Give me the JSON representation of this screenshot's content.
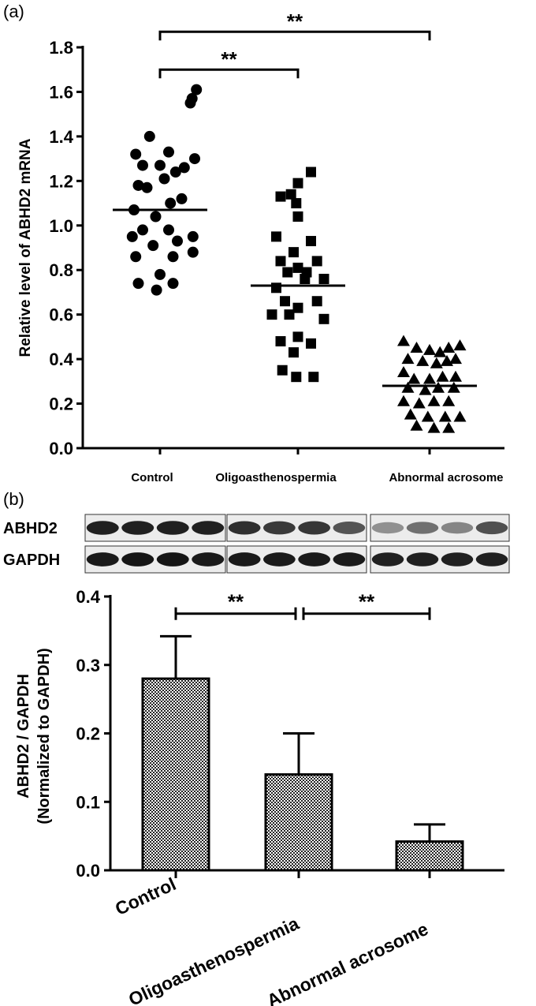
{
  "panels": {
    "a_label": "(a)",
    "b_label": "(b)"
  },
  "blot": {
    "rows": [
      {
        "label": "ABHD2",
        "intensity": [
          [
            0.92,
            0.92,
            0.92,
            0.92
          ],
          [
            0.85,
            0.8,
            0.82,
            0.68
          ],
          [
            0.4,
            0.55,
            0.45,
            0.7
          ]
        ]
      },
      {
        "label": "GAPDH",
        "intensity": [
          [
            0.95,
            0.97,
            0.97,
            0.95
          ],
          [
            0.95,
            0.95,
            0.95,
            0.95
          ],
          [
            0.92,
            0.92,
            0.92,
            0.92
          ]
        ]
      }
    ]
  },
  "chart_data": [
    {
      "type": "scatter",
      "ylabel": "Relative level of ABHD2 mRNA",
      "ylim": [
        0,
        1.8
      ],
      "yticks": [
        "0.0",
        "0.2",
        "0.4",
        "0.6",
        "0.8",
        "1.0",
        "1.2",
        "1.4",
        "1.6",
        "1.8"
      ],
      "categories": [
        "Control",
        "Oligoasthenospermia",
        "Abnormal acrosome"
      ],
      "series": [
        {
          "marker": "circle",
          "mean": 1.07,
          "points": [
            [
              0.42,
              1.61
            ],
            [
              0.35,
              1.55
            ],
            [
              0.37,
              1.57
            ],
            [
              -0.28,
              1.32
            ],
            [
              0.1,
              1.33
            ],
            [
              -0.12,
              1.4
            ],
            [
              -0.2,
              1.27
            ],
            [
              0.0,
              1.27
            ],
            [
              0.18,
              1.24
            ],
            [
              0.28,
              1.26
            ],
            [
              0.4,
              1.3
            ],
            [
              0.05,
              1.21
            ],
            [
              -0.25,
              1.18
            ],
            [
              -0.15,
              1.17
            ],
            [
              0.12,
              1.1
            ],
            [
              0.25,
              1.12
            ],
            [
              -0.05,
              1.04
            ],
            [
              -0.3,
              1.07
            ],
            [
              -0.2,
              0.98
            ],
            [
              0.1,
              0.98
            ],
            [
              -0.32,
              0.95
            ],
            [
              0.2,
              0.93
            ],
            [
              0.38,
              0.95
            ],
            [
              -0.08,
              0.91
            ],
            [
              -0.28,
              0.86
            ],
            [
              0.15,
              0.86
            ],
            [
              0.38,
              0.88
            ],
            [
              0.0,
              0.78
            ],
            [
              -0.25,
              0.74
            ],
            [
              0.15,
              0.74
            ],
            [
              -0.04,
              0.71
            ]
          ]
        },
        {
          "marker": "square",
          "mean": 0.73,
          "points": [
            [
              0.15,
              1.24
            ],
            [
              -0.2,
              1.13
            ],
            [
              -0.08,
              1.14
            ],
            [
              0.0,
              1.19
            ],
            [
              -0.02,
              1.1
            ],
            [
              0.0,
              1.04
            ],
            [
              -0.25,
              0.95
            ],
            [
              0.15,
              0.93
            ],
            [
              -0.05,
              0.88
            ],
            [
              -0.2,
              0.84
            ],
            [
              0.0,
              0.81
            ],
            [
              0.22,
              0.84
            ],
            [
              -0.12,
              0.79
            ],
            [
              0.1,
              0.79
            ],
            [
              -0.25,
              0.72
            ],
            [
              0.08,
              0.76
            ],
            [
              0.3,
              0.76
            ],
            [
              -0.15,
              0.66
            ],
            [
              0.22,
              0.66
            ],
            [
              0.0,
              0.63
            ],
            [
              -0.3,
              0.6
            ],
            [
              -0.1,
              0.6
            ],
            [
              0.3,
              0.58
            ],
            [
              0.0,
              0.5
            ],
            [
              -0.2,
              0.48
            ],
            [
              0.15,
              0.47
            ],
            [
              -0.05,
              0.43
            ],
            [
              -0.18,
              0.35
            ],
            [
              -0.02,
              0.32
            ],
            [
              0.18,
              0.32
            ]
          ]
        },
        {
          "marker": "triangle",
          "mean": 0.28,
          "points": [
            [
              -0.3,
              0.48
            ],
            [
              -0.15,
              0.45
            ],
            [
              0.0,
              0.44
            ],
            [
              0.12,
              0.43
            ],
            [
              0.22,
              0.45
            ],
            [
              0.35,
              0.46
            ],
            [
              -0.25,
              0.4
            ],
            [
              -0.08,
              0.39
            ],
            [
              0.08,
              0.38
            ],
            [
              0.2,
              0.39
            ],
            [
              0.3,
              0.4
            ],
            [
              -0.3,
              0.34
            ],
            [
              -0.18,
              0.31
            ],
            [
              0.0,
              0.31
            ],
            [
              0.15,
              0.32
            ],
            [
              0.3,
              0.32
            ],
            [
              -0.25,
              0.27
            ],
            [
              -0.05,
              0.26
            ],
            [
              0.1,
              0.27
            ],
            [
              0.28,
              0.27
            ],
            [
              -0.3,
              0.21
            ],
            [
              -0.12,
              0.2
            ],
            [
              0.05,
              0.21
            ],
            [
              0.22,
              0.21
            ],
            [
              -0.22,
              0.15
            ],
            [
              -0.02,
              0.14
            ],
            [
              0.18,
              0.14
            ],
            [
              0.35,
              0.14
            ],
            [
              -0.15,
              0.1
            ],
            [
              0.05,
              0.09
            ],
            [
              0.22,
              0.09
            ]
          ]
        }
      ],
      "significance": [
        {
          "from": 0,
          "to": 1,
          "label": "**",
          "y": 1.7
        },
        {
          "from": 0,
          "to": 2,
          "label": "**",
          "y": 1.87
        }
      ]
    },
    {
      "type": "bar",
      "ylabel": "ABHD2 / GAPDH",
      "ylabel2": "(Normalized to GAPDH)",
      "ylim": [
        0,
        0.4
      ],
      "yticks": [
        "0.0",
        "0.1",
        "0.2",
        "0.3",
        "0.4"
      ],
      "categories": [
        "Control",
        "Oligoasthenospermia",
        "Abnormal acrosome"
      ],
      "values": [
        0.28,
        0.14,
        0.042
      ],
      "errors": [
        0.062,
        0.06,
        0.025
      ],
      "significance": [
        {
          "from": 0,
          "to": 1,
          "label": "**",
          "y": 0.375
        },
        {
          "from": 1,
          "to": 2,
          "label": "**",
          "y": 0.375
        }
      ]
    }
  ]
}
